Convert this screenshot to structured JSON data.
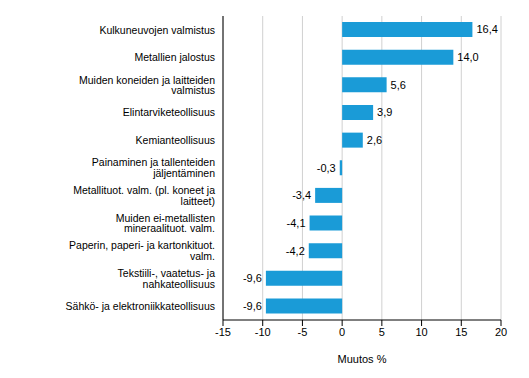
{
  "chart_data": {
    "type": "bar",
    "orientation": "horizontal",
    "categories": [
      "Kulkuneuvojen valmistus",
      "Metallien jalostus",
      "Muiden koneiden ja laitteiden valmistus",
      "Elintarviketeollisuus",
      "Kemianteollisuus",
      "Painaminen ja tallenteiden jäljentäminen",
      "Metallituot. valm. (pl. koneet ja laitteet)",
      "Muiden ei-metallisten mineraalituot. valm.",
      "Paperin, paperi- ja kartonkituot. valm.",
      "Tekstiili-, vaatetus- ja nahkateollisuus",
      "Sähkö- ja elektroniikkateollisuus"
    ],
    "values": [
      16.4,
      14.0,
      5.6,
      3.9,
      2.6,
      -0.3,
      -3.4,
      -4.1,
      -4.2,
      -9.6,
      -9.6
    ],
    "value_labels": [
      "16,4",
      "14,0",
      "5,6",
      "3,9",
      "2,6",
      "-0,3",
      "-3,4",
      "-4,1",
      "-4,2",
      "-9,6",
      "-9,6"
    ],
    "data_labels": true,
    "color": "#1a9bd7",
    "xlim": [
      -15,
      20
    ],
    "xticks": [
      -15,
      -10,
      -5,
      0,
      5,
      10,
      15,
      20
    ],
    "x_label": "Muutos %",
    "grid": true
  }
}
